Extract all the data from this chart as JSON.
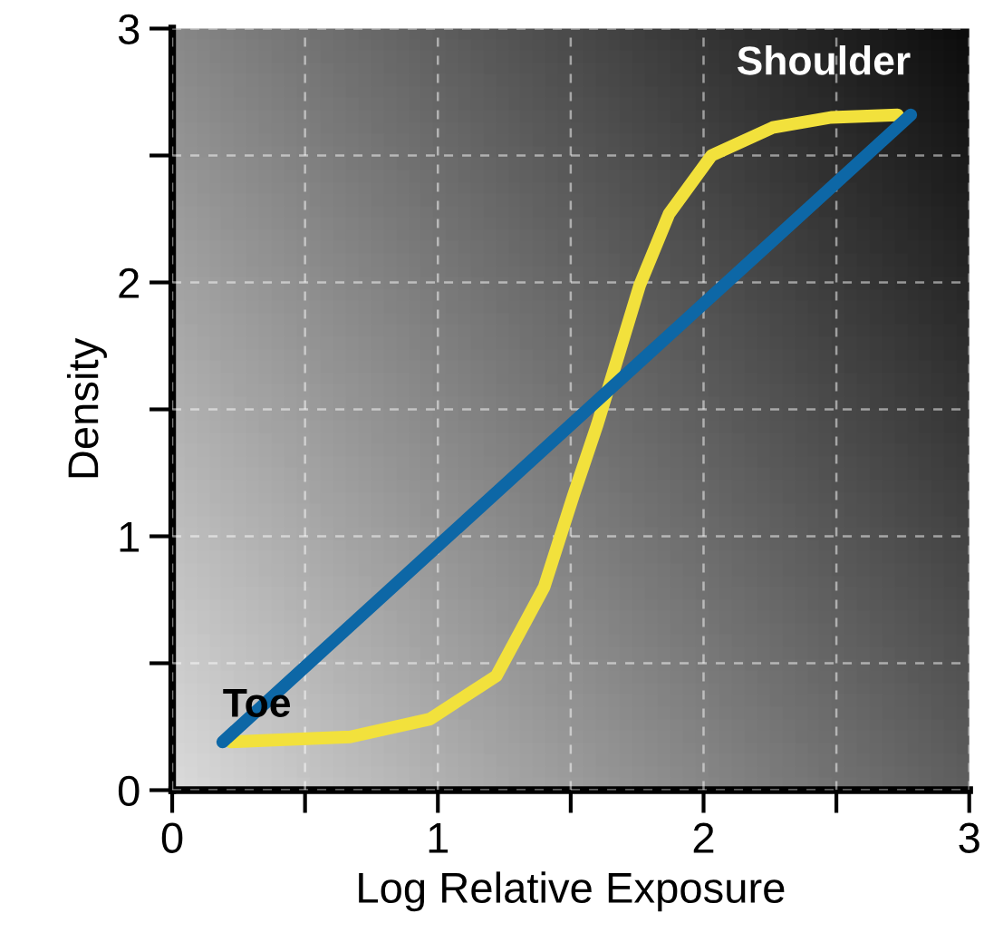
{
  "chart_data": {
    "type": "line",
    "xlabel": "Log Relative Exposure",
    "ylabel": "Density",
    "xlim": [
      0,
      3
    ],
    "ylim": [
      0,
      3
    ],
    "xticks": [
      0,
      {
        "value": 0.5,
        "label": null
      },
      1,
      {
        "value": 1.5,
        "label": null
      },
      2,
      {
        "value": 2.5,
        "label": null
      },
      3
    ],
    "yticks": [
      0,
      {
        "value": 0.5,
        "label": null
      },
      1,
      {
        "value": 1.5,
        "label": null
      },
      2,
      {
        "value": 2.5,
        "label": null
      },
      3
    ],
    "grid": true,
    "marker": "none",
    "line_style": "solid",
    "series": [
      {
        "color": "#f2e13c",
        "x": [
          0.22,
          0.67,
          0.97,
          1.22,
          1.4,
          1.51,
          1.6,
          1.67,
          1.76,
          1.87,
          2.03,
          2.26,
          2.48,
          2.73
        ],
        "values": [
          0.19,
          0.21,
          0.28,
          0.45,
          0.8,
          1.16,
          1.44,
          1.68,
          1.99,
          2.27,
          2.5,
          2.61,
          2.65,
          2.66
        ]
      },
      {
        "color": "#0d67a6",
        "x": [
          0.19,
          2.78
        ],
        "values": [
          0.19,
          2.66
        ]
      }
    ],
    "annotations": [
      {
        "text": "Toe",
        "x": 0.19,
        "y": 0.19
      },
      {
        "text": "Shoulder",
        "x": 2.78,
        "y": 2.66
      }
    ]
  }
}
